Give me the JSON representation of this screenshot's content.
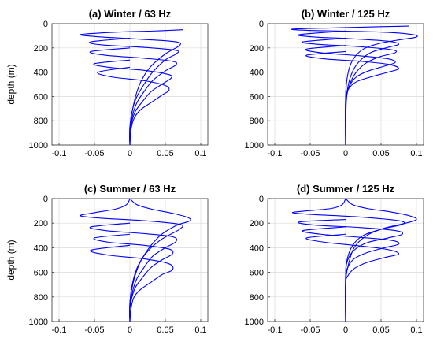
{
  "figure": {
    "line_color": "#0000ff",
    "grid": true
  },
  "chart_data": [
    {
      "type": "line",
      "title": "(a) Winter / 63 Hz",
      "ylabel": "depth (m)",
      "xlabel": "",
      "xlim": [
        -0.11,
        0.11
      ],
      "ylim": [
        0,
        1000
      ],
      "y_reversed": true,
      "x_ticks": [
        -0.1,
        -0.05,
        0,
        0.05,
        0.1
      ],
      "x_tick_labels": [
        "-0.1",
        "-0.05",
        "0",
        "0.05",
        "0.1"
      ],
      "y_ticks": [
        0,
        200,
        400,
        600,
        800,
        1000
      ],
      "y_tick_labels": [
        "0",
        "200",
        "400",
        "600",
        "800",
        "1000"
      ],
      "series": [
        {
          "x": [
            0.075,
            0.035,
            -0.02,
            -0.07,
            -0.04,
            0.02,
            0.065,
            0.07,
            0.05,
            0.03,
            0.018,
            0.01,
            0.004,
            0.0,
            0.0
          ],
          "y": [
            50,
            60,
            70,
            90,
            110,
            130,
            150,
            180,
            250,
            350,
            450,
            560,
            700,
            850,
            1000
          ]
        },
        {
          "x": [
            0.0,
            -0.055,
            -0.04,
            0.02,
            0.065,
            0.065,
            0.05,
            0.032,
            0.02,
            0.01,
            0.004,
            0.0,
            0.0
          ],
          "y": [
            120,
            150,
            175,
            195,
            220,
            250,
            300,
            400,
            500,
            600,
            700,
            850,
            1000
          ]
        },
        {
          "x": [
            0.0,
            -0.055,
            -0.035,
            0.02,
            0.06,
            0.065,
            0.05,
            0.032,
            0.02,
            0.01,
            0.004,
            0.0,
            0.0
          ],
          "y": [
            200,
            230,
            260,
            285,
            310,
            340,
            390,
            470,
            560,
            650,
            750,
            880,
            1000
          ]
        },
        {
          "x": [
            0.0,
            -0.05,
            -0.03,
            0.02,
            0.055,
            0.058,
            0.045,
            0.03,
            0.018,
            0.008,
            0.003,
            0.0,
            0.0
          ],
          "y": [
            300,
            330,
            360,
            385,
            420,
            450,
            500,
            560,
            640,
            720,
            800,
            900,
            1000
          ]
        },
        {
          "x": [
            0.0,
            -0.045,
            -0.025,
            0.02,
            0.05,
            0.055,
            0.045,
            0.03,
            0.015,
            0.006,
            0.002,
            0.0
          ],
          "y": [
            360,
            400,
            440,
            470,
            510,
            550,
            590,
            650,
            710,
            780,
            860,
            1000
          ]
        }
      ]
    },
    {
      "type": "line",
      "title": "(b) Winter / 125 Hz",
      "ylabel": "",
      "xlabel": "",
      "xlim": [
        -0.11,
        0.11
      ],
      "ylim": [
        0,
        1000
      ],
      "y_reversed": true,
      "x_ticks": [
        -0.1,
        -0.05,
        0,
        0.05,
        0.1
      ],
      "x_tick_labels": [
        "-0.1",
        "-0.05",
        "0",
        "0.05",
        "0.1"
      ],
      "y_ticks": [
        0,
        200,
        400,
        600,
        800,
        1000
      ],
      "y_tick_labels": [
        "0",
        "200",
        "400",
        "600",
        "800",
        "1000"
      ],
      "series": [
        {
          "x": [
            0.09,
            0.05,
            -0.02,
            -0.075,
            -0.055,
            0.0,
            0.06,
            0.095,
            0.1,
            0.08,
            0.05,
            0.025,
            0.01,
            0.003,
            0.0,
            0.0
          ],
          "y": [
            20,
            25,
            35,
            45,
            55,
            62,
            72,
            90,
            110,
            130,
            160,
            210,
            300,
            420,
            600,
            1000
          ]
        },
        {
          "x": [
            0.0,
            -0.065,
            -0.045,
            0.01,
            0.06,
            0.075,
            0.06,
            0.035,
            0.018,
            0.008,
            0.002,
            0.0,
            0.0
          ],
          "y": [
            60,
            90,
            110,
            125,
            145,
            170,
            195,
            240,
            320,
            420,
            560,
            700,
            1000
          ]
        },
        {
          "x": [
            0.0,
            -0.06,
            -0.04,
            0.02,
            0.065,
            0.07,
            0.05,
            0.03,
            0.015,
            0.006,
            0.001,
            0.0
          ],
          "y": [
            120,
            150,
            170,
            190,
            215,
            240,
            270,
            320,
            400,
            500,
            640,
            1000
          ]
        },
        {
          "x": [
            0.0,
            -0.055,
            -0.035,
            0.02,
            0.06,
            0.07,
            0.055,
            0.032,
            0.015,
            0.005,
            0.0,
            0.0
          ],
          "y": [
            180,
            210,
            240,
            265,
            290,
            320,
            350,
            390,
            440,
            520,
            650,
            1000
          ]
        },
        {
          "x": [
            0.0,
            -0.055,
            -0.03,
            0.02,
            0.06,
            0.075,
            0.06,
            0.035,
            0.015,
            0.004,
            0.0,
            0.0
          ],
          "y": [
            230,
            260,
            290,
            310,
            335,
            370,
            400,
            440,
            480,
            540,
            640,
            1000
          ]
        }
      ]
    },
    {
      "type": "line",
      "title": "(c) Summer / 63 Hz",
      "ylabel": "depth (m)",
      "xlabel": "",
      "xlim": [
        -0.11,
        0.11
      ],
      "ylim": [
        0,
        1000
      ],
      "y_reversed": true,
      "x_ticks": [
        -0.1,
        -0.05,
        0,
        0.05,
        0.1
      ],
      "x_tick_labels": [
        "-0.1",
        "-0.05",
        "0",
        "0.05",
        "0.1"
      ],
      "y_ticks": [
        0,
        200,
        400,
        600,
        800,
        1000
      ],
      "y_tick_labels": [
        "0",
        "200",
        "400",
        "600",
        "800",
        "1000"
      ],
      "series": [
        {
          "x": [
            0.0,
            0.01,
            0.03,
            0.06,
            0.08,
            0.085,
            0.065,
            0.045,
            0.03,
            0.018,
            0.01,
            0.004,
            0.0,
            0.0
          ],
          "y": [
            0,
            50,
            85,
            120,
            150,
            180,
            220,
            290,
            380,
            480,
            580,
            700,
            850,
            1000
          ]
        },
        {
          "x": [
            0.0,
            -0.005,
            -0.02,
            -0.05,
            -0.07,
            -0.04,
            0.02,
            0.07,
            0.07,
            0.045,
            0.025,
            0.012,
            0.004,
            0.0,
            0.0
          ],
          "y": [
            0,
            50,
            85,
            115,
            140,
            160,
            180,
            210,
            250,
            330,
            430,
            540,
            680,
            850,
            1000
          ]
        },
        {
          "x": [
            0.0,
            -0.055,
            -0.035,
            0.02,
            0.06,
            0.065,
            0.05,
            0.032,
            0.02,
            0.01,
            0.004,
            0.0,
            0.0
          ],
          "y": [
            200,
            230,
            260,
            285,
            310,
            350,
            400,
            470,
            560,
            650,
            750,
            880,
            1000
          ]
        },
        {
          "x": [
            0.0,
            -0.05,
            -0.03,
            0.02,
            0.055,
            0.06,
            0.045,
            0.03,
            0.018,
            0.008,
            0.003,
            0.0,
            0.0
          ],
          "y": [
            290,
            320,
            355,
            380,
            410,
            450,
            500,
            560,
            640,
            720,
            800,
            900,
            1000
          ]
        },
        {
          "x": [
            0.0,
            -0.055,
            -0.03,
            0.02,
            0.055,
            0.06,
            0.045,
            0.03,
            0.015,
            0.006,
            0.002,
            0.0
          ],
          "y": [
            380,
            420,
            460,
            490,
            530,
            580,
            620,
            680,
            740,
            800,
            880,
            1000
          ]
        }
      ]
    },
    {
      "type": "line",
      "title": "(d) Summer / 125 Hz",
      "ylabel": "",
      "xlabel": "",
      "xlim": [
        -0.11,
        0.11
      ],
      "ylim": [
        0,
        1000
      ],
      "y_reversed": true,
      "x_ticks": [
        -0.1,
        -0.05,
        0,
        0.05,
        0.1
      ],
      "x_tick_labels": [
        "-0.1",
        "-0.05",
        "0",
        "0.05",
        "0.1"
      ],
      "y_ticks": [
        0,
        200,
        400,
        600,
        800,
        1000
      ],
      "y_tick_labels": [
        "0",
        "200",
        "400",
        "600",
        "800",
        "1000"
      ],
      "series": [
        {
          "x": [
            0.0,
            0.01,
            0.03,
            0.065,
            0.09,
            0.1,
            0.085,
            0.055,
            0.03,
            0.012,
            0.003,
            0.0,
            0.0
          ],
          "y": [
            0,
            50,
            80,
            110,
            140,
            170,
            200,
            240,
            300,
            400,
            560,
            700,
            1000
          ]
        },
        {
          "x": [
            0.0,
            -0.005,
            -0.02,
            -0.055,
            -0.075,
            -0.045,
            0.02,
            0.075,
            0.08,
            0.05,
            0.025,
            0.01,
            0.002,
            0.0,
            0.0
          ],
          "y": [
            0,
            50,
            80,
            100,
            115,
            130,
            150,
            180,
            210,
            250,
            300,
            380,
            500,
            650,
            1000
          ]
        },
        {
          "x": [
            0.0,
            -0.065,
            -0.045,
            0.02,
            0.07,
            0.08,
            0.06,
            0.03,
            0.012,
            0.003,
            0.0,
            0.0
          ],
          "y": [
            170,
            190,
            215,
            235,
            260,
            290,
            320,
            360,
            420,
            500,
            620,
            1000
          ]
        },
        {
          "x": [
            0.0,
            -0.06,
            -0.035,
            0.02,
            0.065,
            0.075,
            0.055,
            0.03,
            0.012,
            0.003,
            0.0,
            0.0
          ],
          "y": [
            230,
            260,
            290,
            315,
            340,
            370,
            400,
            440,
            490,
            560,
            650,
            1000
          ]
        },
        {
          "x": [
            0.0,
            -0.055,
            -0.03,
            0.02,
            0.06,
            0.075,
            0.055,
            0.03,
            0.012,
            0.003,
            0.0,
            0.0
          ],
          "y": [
            290,
            320,
            355,
            385,
            415,
            450,
            480,
            520,
            570,
            630,
            700,
            1000
          ]
        }
      ]
    }
  ]
}
